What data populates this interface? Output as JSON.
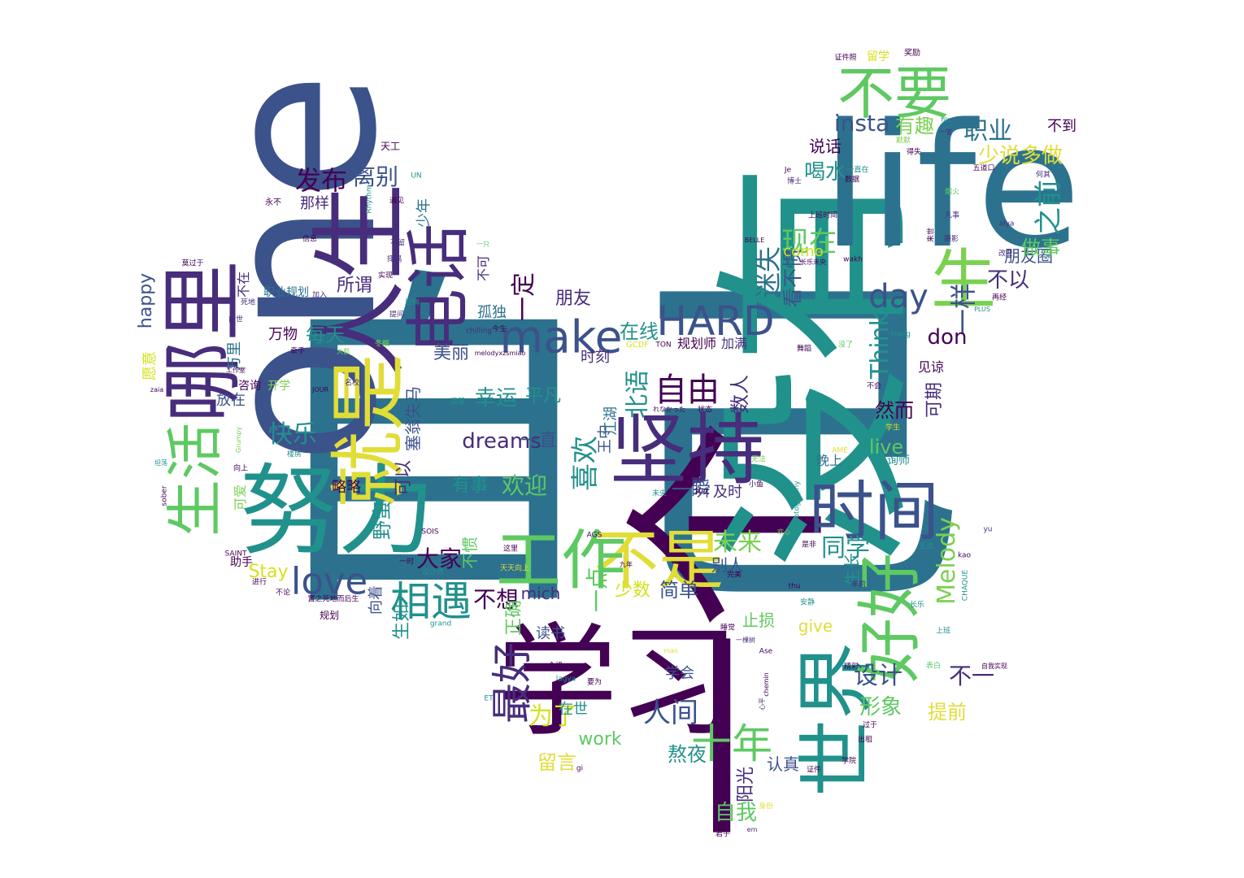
{
  "palette": {
    "dark_purple": "#440154",
    "indigo": "#3b528b",
    "teal": "#21918c",
    "blue_teal": "#2c728e",
    "green": "#5ec962",
    "light_green": "#7ad151",
    "yellow": "#d3e21b",
    "bright_yellow": "#e1dd37",
    "purple": "#472d7b"
  },
  "words": [
    "自己",
    "一个",
    "one",
    "没有",
    "life",
    "学习",
    "努力",
    "人生",
    "哪里",
    "坚持",
    "就是",
    "世界",
    "电话",
    "时间",
    "不是",
    "工作",
    "好好",
    "生活",
    "不要",
    "make",
    "HARD",
    "相遇",
    "最好",
    "十年",
    "生",
    "love",
    "day",
    "发布",
    "离别",
    "insta",
    "有趣",
    "职业",
    "少说多做",
    "喝水",
    "说话",
    "之前",
    "朋友圈",
    "现在",
    "迷失",
    "看不惯",
    "做事",
    "不以",
    "一样",
    "don",
    "Think",
    "可期",
    "然而",
    "live",
    "咨询师",
    "晚上",
    "Melody",
    "同学",
    "生长",
    "未来",
    "别人",
    "一瞬",
    "及时",
    "自由",
    "数人",
    "北语",
    "幸运",
    "平凡",
    "dreams",
    "一直",
    "有事",
    "欢迎",
    "喜欢",
    "王中",
    "江湖",
    "塞翁失马",
    "可以",
    "快乐",
    "每天",
    "所谓",
    "一定",
    "朋友",
    "孤独",
    "美丽",
    "在线",
    "规划师",
    "加满",
    "万物",
    "放在",
    "略略",
    "大家",
    "不想",
    "正确",
    "读书",
    "生如",
    "mich",
    "一点",
    "少数",
    "简单",
    "止损",
    "give",
    "设计",
    "形象",
    "提前",
    "不一",
    "学会",
    "为了",
    "work",
    "留言",
    "在世",
    "熬夜",
    "认真",
    "自我",
    "阳光",
    "happy",
    "愿意",
    "万里",
    "不在",
    "咨询",
    "开学",
    "野蛮",
    "向着",
    "Stay",
    "助手",
    "可爱",
    "时刻",
    "那样",
    "少年",
    "职业规划",
    "como",
    "不到",
    "人间",
    "不可",
    "不惯",
    "留学",
    "奖励",
    "证件照",
    "天工",
    "永不",
    "信息",
    "莫过于",
    "UN",
    "遇见",
    "Rhythm",
    "BELLE",
    "PLUS",
    "alya",
    "wakh",
    "chilling",
    "TON",
    "GCDF",
    "trong",
    "SAINT",
    "SOIS",
    "AGS",
    "JOUR",
    "zaia",
    "sober",
    "CHAQUE",
    "yu",
    "kao",
    "AME",
    "thu",
    "Ase",
    "chemin",
    "suis",
    "lagya",
    "grand",
    "mao",
    "ET",
    "gi",
    "em",
    "君子",
    "学院",
    "证件",
    "出租",
    "过于",
    "长乐",
    "上班",
    "自我实现",
    "表白",
    "一时",
    "规划",
    "进行",
    "不论",
    "设计师",
    "九年",
    "完美",
    "安静",
    "是非",
    "年前",
    "五道",
    "Photography",
    "欢心",
    "舞蹈",
    "没了",
    "见谅",
    "不会",
    "学生",
    "无法",
    "小鱼",
    "未央",
    "其次",
    "状态",
    "清楚",
    "名校",
    "大都",
    "冬眠",
    "牵手",
    "楼房",
    "坦荡",
    "向上",
    "Grumpy",
    "死地",
    "前世",
    "工作室",
    "加入",
    "后悔",
    "实现",
    "提问",
    "不留",
    "择偶",
    "睡觉",
    "一棵树",
    "精彩",
    "五道口",
    "博士",
    "何其",
    "得失",
    "凡事",
    "改变",
    "再经",
    "长乐未央",
    "上班时间",
    "fils",
    "Je",
    "一堂",
    "数据",
    "默默",
    "烟火",
    "来世",
    "摄影",
    "一只",
    "今生",
    "这里",
    "天天向上",
    "要为",
    "合格",
    "身份",
    "置之死地而后生",
    "melodyxzsmiao",
    "れなかった",
    "心平",
    "一直在"
  ]
}
